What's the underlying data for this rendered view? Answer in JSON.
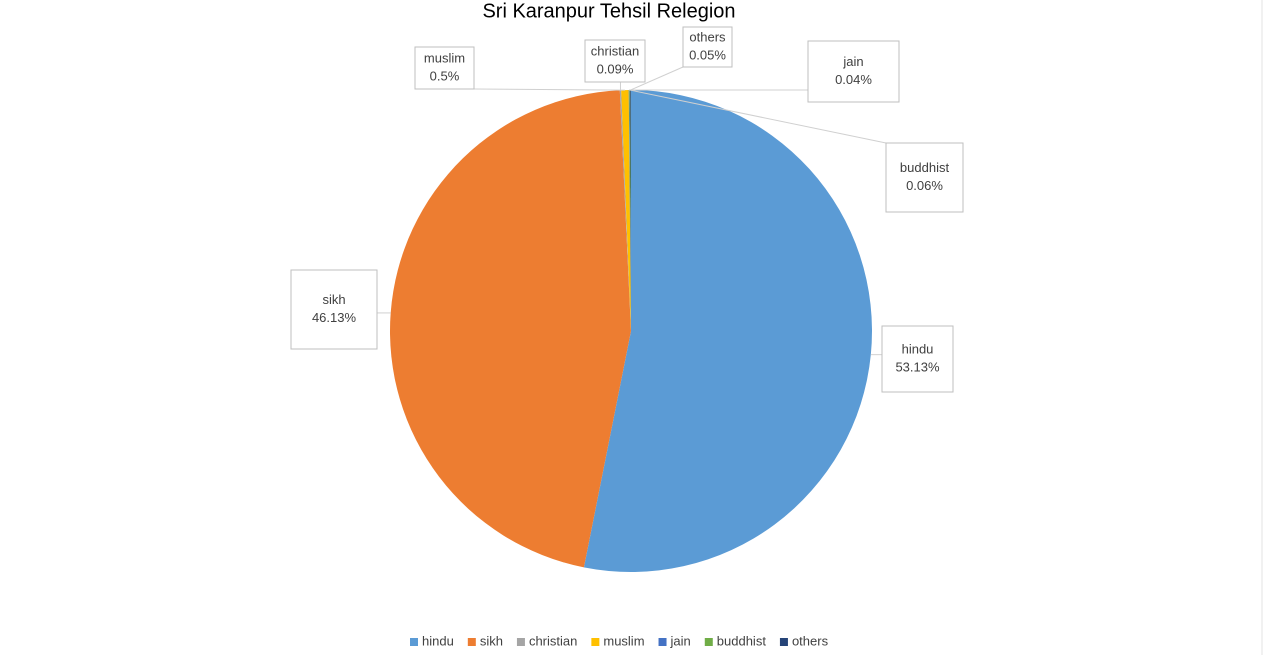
{
  "chart_data": {
    "type": "pie",
    "title": "Sri Karanpur Tehsil Relegion",
    "categories": [
      "hindu",
      "sikh",
      "christian",
      "muslim",
      "jain",
      "buddhist",
      "others"
    ],
    "values": [
      53.13,
      46.13,
      0.09,
      0.5,
      0.04,
      0.06,
      0.05
    ],
    "value_labels": [
      "53.13%",
      "46.13%",
      "0.09%",
      "0.5%",
      "0.04%",
      "0.06%",
      "0.05%"
    ],
    "colors": [
      "#5b9bd5",
      "#ed7d31",
      "#a5a5a5",
      "#ffc000",
      "#4472c4",
      "#70ad47",
      "#264478"
    ],
    "legend": "bottom"
  }
}
